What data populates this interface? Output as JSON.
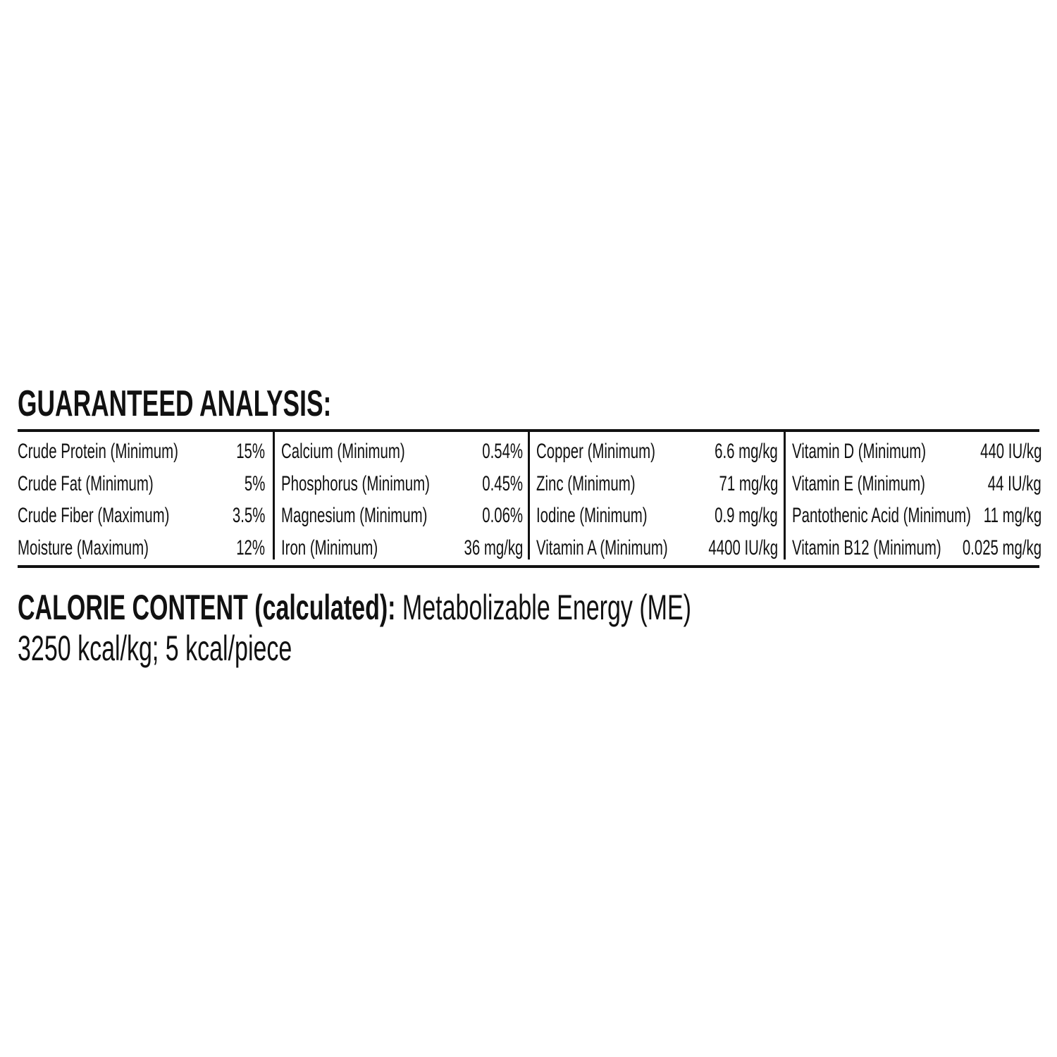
{
  "title": "GUARANTEED ANALYSIS:",
  "columns": [
    {
      "rows": [
        {
          "label": "Crude Protein (Minimum)",
          "value": "15%"
        },
        {
          "label": "Crude Fat (Minimum)",
          "value": "5%"
        },
        {
          "label": "Crude Fiber (Maximum)",
          "value": "3.5%"
        },
        {
          "label": "Moisture (Maximum)",
          "value": "12%"
        }
      ]
    },
    {
      "rows": [
        {
          "label": "Calcium (Minimum)",
          "value": "0.54%"
        },
        {
          "label": "Phosphorus (Minimum)",
          "value": "0.45%"
        },
        {
          "label": "Magnesium (Minimum)",
          "value": "0.06%"
        },
        {
          "label": "Iron (Minimum)",
          "value": "36 mg/kg"
        }
      ]
    },
    {
      "rows": [
        {
          "label": "Copper (Minimum)",
          "value": "6.6 mg/kg"
        },
        {
          "label": "Zinc (Minimum)",
          "value": "71 mg/kg"
        },
        {
          "label": "Iodine (Minimum)",
          "value": "0.9 mg/kg"
        },
        {
          "label": "Vitamin A (Minimum)",
          "value": "4400 IU/kg"
        }
      ]
    },
    {
      "rows": [
        {
          "label": "Vitamin D (Minimum)",
          "value": "440 IU/kg"
        },
        {
          "label": "Vitamin E (Minimum)",
          "value": "44 IU/kg"
        },
        {
          "label": "Pantothenic Acid (Minimum)",
          "value": "11 mg/kg"
        },
        {
          "label": "Vitamin B12 (Minimum)",
          "value": "0.025 mg/kg"
        }
      ]
    }
  ],
  "calorie": {
    "heading": "CALORIE CONTENT (calculated):",
    "text": " Metabolizable Energy (ME)",
    "values": "3250 kcal/kg; 5 kcal/piece"
  }
}
